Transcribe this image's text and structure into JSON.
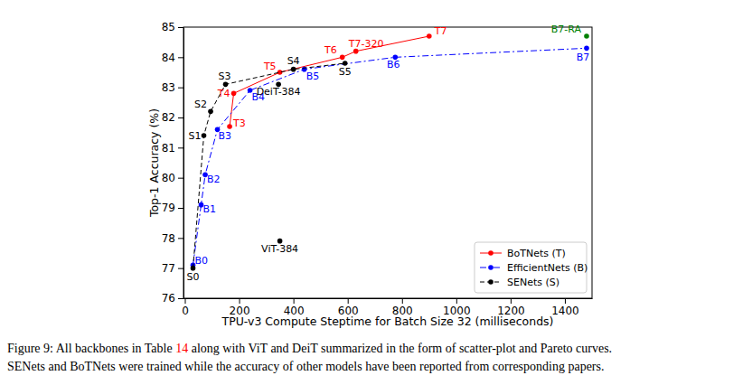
{
  "chart_data": {
    "type": "line",
    "x_label": "TPU-v3 Compute Steptime for Batch Size 32 (milliseconds)",
    "y_label": "Top-1 Accuracy (%)",
    "xlim": [
      -5,
      1500
    ],
    "ylim": [
      76,
      85
    ],
    "xticks": [
      0,
      200,
      400,
      600,
      800,
      1000,
      1200,
      1400
    ],
    "yticks": [
      76,
      77,
      78,
      79,
      80,
      81,
      82,
      83,
      84,
      85
    ],
    "grid": false,
    "legend": "lower right",
    "marker": "circle",
    "series": [
      {
        "name": "BoTNets (T)",
        "color": "#ff0000",
        "line_style": "solid",
        "x": [
          165,
          180,
          350,
          580,
          630,
          900
        ],
        "values": [
          81.7,
          82.8,
          83.5,
          84.0,
          84.2,
          84.7
        ],
        "labels": [
          "T3",
          "T4",
          "T5",
          "T6",
          "T7-320",
          "T7"
        ]
      },
      {
        "name": "EfficientNets (B)",
        "color": "#0000ff",
        "line_style": "dashdot",
        "x": [
          30,
          60,
          75,
          120,
          240,
          440,
          775,
          1480
        ],
        "values": [
          77.1,
          79.1,
          80.1,
          81.6,
          82.9,
          83.6,
          84.0,
          84.3
        ],
        "labels": [
          "B0",
          "B1",
          "B2",
          "B3",
          "B4",
          "B5",
          "B6",
          "B7"
        ]
      },
      {
        "name": "SENets (S)",
        "color": "#000000",
        "line_style": "dashed",
        "x": [
          30,
          70,
          95,
          150,
          400,
          590
        ],
        "values": [
          77.0,
          81.4,
          82.2,
          83.1,
          83.6,
          83.8
        ],
        "labels": [
          "S0",
          "S1",
          "S2",
          "S3",
          "S4",
          "S5"
        ]
      }
    ],
    "points": [
      {
        "label": "DeiT-384",
        "x": 345,
        "y": 83.1,
        "color": "#000000"
      },
      {
        "label": "ViT-384",
        "x": 350,
        "y": 77.9,
        "color": "#000000"
      },
      {
        "label": "B7-RA",
        "x": 1480,
        "y": 84.7,
        "color": "#008000"
      }
    ],
    "caption": {
      "lines": [
        [
          {
            "text": "Figure 9: All backbones in Table "
          },
          {
            "text": "14",
            "color": "#ff0000"
          },
          {
            "text": " along with ViT and DeiT summarized in the form of scatter-plot and Pareto curves."
          }
        ],
        [
          {
            "text": "SENets and BoTNets were trained while the accuracy of other models have been reported from corresponding papers."
          }
        ]
      ]
    }
  }
}
